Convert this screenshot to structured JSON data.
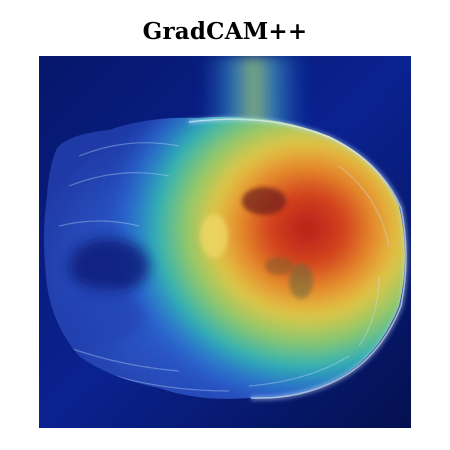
{
  "figure": {
    "title": "GradCAM++",
    "colors": {
      "background": "#04125a",
      "heat_peak": "#c8281e",
      "heat_mid": "#e8c84a",
      "heat_low": "#2fb6b0",
      "cool": "#1f3fb0"
    }
  }
}
